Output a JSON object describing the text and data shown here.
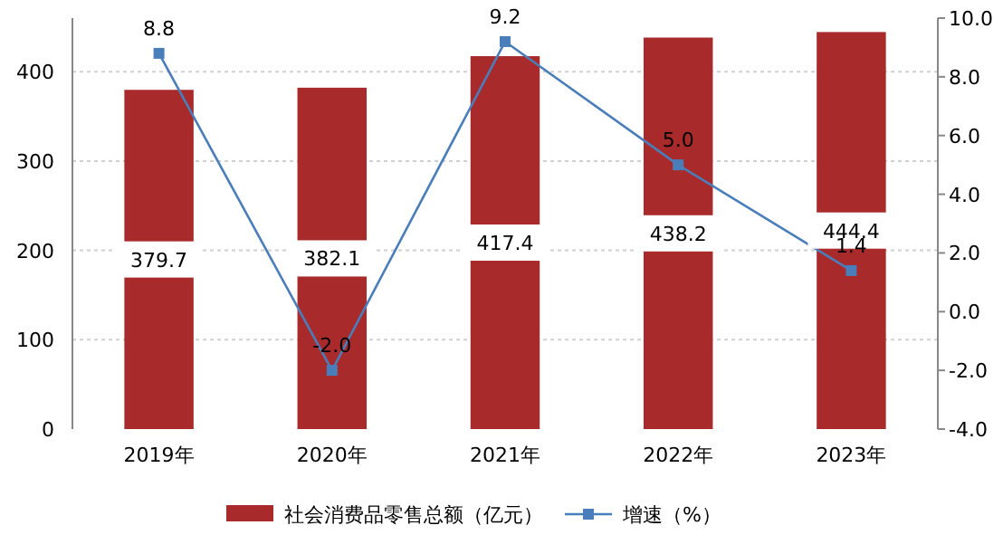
{
  "chart_data": {
    "type": "bar",
    "categories": [
      "2019年",
      "2020年",
      "2021年",
      "2022年",
      "2023年"
    ],
    "series": [
      {
        "name": "社会消费品零售总额（亿元）",
        "color": "#a82a2a",
        "values": [
          379.7,
          382.1,
          417.4,
          438.2,
          444.4
        ]
      },
      {
        "name": "增速（%）",
        "type": "line",
        "axis": "y2",
        "color": "#4a7ebb",
        "marker": "square",
        "values": [
          8.8,
          -2.0,
          9.2,
          5.0,
          1.4
        ],
        "value_labels": [
          "8.8",
          "-2.0",
          "9.2",
          "5.0",
          "1.4"
        ]
      }
    ],
    "ylim": [
      0,
      460
    ],
    "yticks": [
      0,
      100,
      200,
      300,
      400
    ],
    "y2lim": [
      -4,
      10
    ],
    "y2ticks": [
      {
        "value": -4,
        "label": "-4.0"
      },
      {
        "value": -2,
        "label": "-2.0"
      },
      {
        "value": 0,
        "label": "0.0"
      },
      {
        "value": 2,
        "label": "2.0"
      },
      {
        "value": 4,
        "label": "4.0"
      },
      {
        "value": 6,
        "label": "6.0"
      },
      {
        "value": 8,
        "label": "8.0"
      },
      {
        "value": 10,
        "label": "10.0"
      }
    ],
    "grid": "y",
    "legend": "bottom",
    "data_labels": true
  }
}
